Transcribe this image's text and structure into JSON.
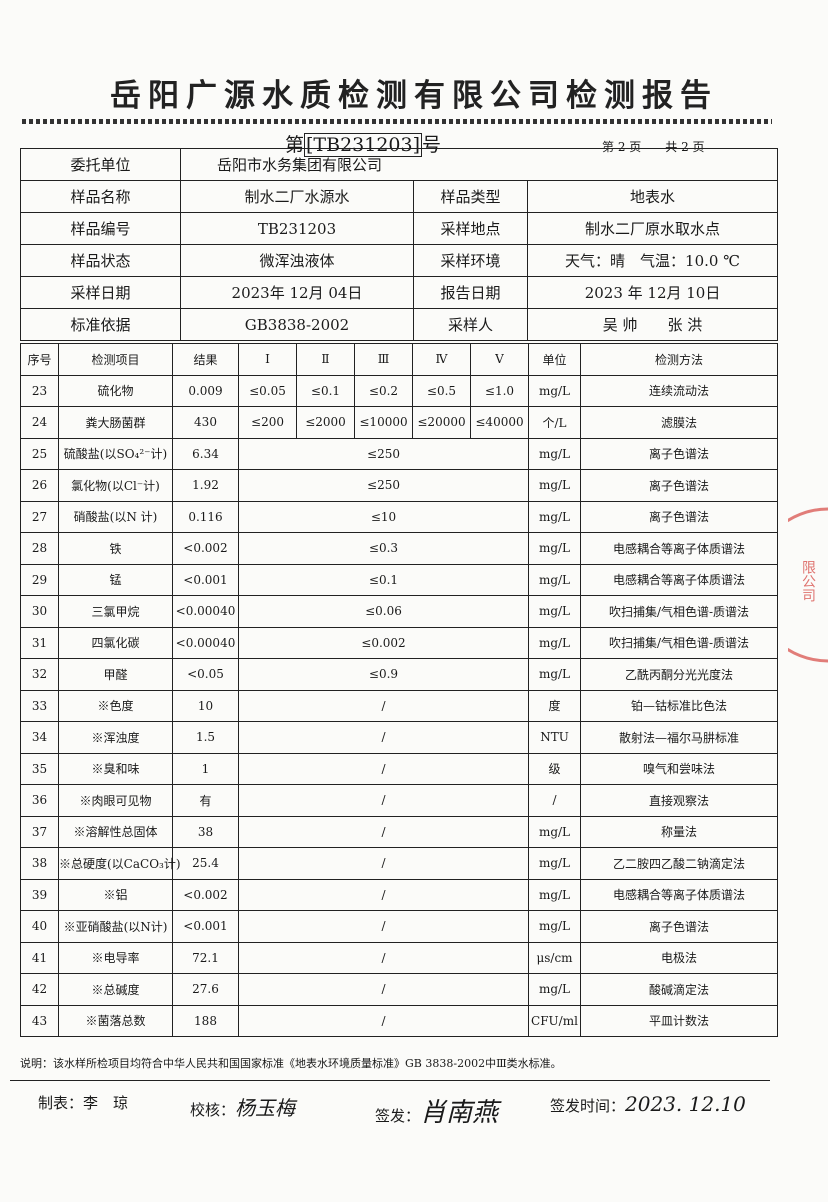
{
  "title": "岳阳广源水质检测有限公司检测报告",
  "report_no_prefix": "第",
  "report_no": "[TB231203]",
  "report_no_suffix": "号",
  "page_info": "第 2 页　　共 2 页",
  "info": {
    "client_label": "委托单位",
    "client": "岳阳市水务集团有限公司",
    "sample_name_label": "样品名称",
    "sample_name": "制水二厂水源水",
    "sample_type_label": "样品类型",
    "sample_type": "地表水",
    "sample_no_label": "样品编号",
    "sample_no": "TB231203",
    "location_label": "采样地点",
    "location": "制水二厂原水取水点",
    "state_label": "样品状态",
    "state": "微浑浊液体",
    "env_label": "采样环境",
    "env": "天气：晴　气温：10.0 ℃",
    "sample_date_label": "采样日期",
    "sample_date": "2023年 12月 04日",
    "report_date_label": "报告日期",
    "report_date": "2023 年 12月 10日",
    "standard_label": "标准依据",
    "standard": "GB3838-2002",
    "sampler_label": "采样人",
    "sampler": "吴 帅　　张 洪"
  },
  "columns": [
    "序号",
    "检测项目",
    "结果",
    "Ⅰ",
    "Ⅱ",
    "Ⅲ",
    "Ⅳ",
    "Ⅴ",
    "单位",
    "检测方法"
  ],
  "rows": [
    {
      "no": "23",
      "item": "硫化物",
      "result": "0.009",
      "limits": [
        "≤0.05",
        "≤0.1",
        "≤0.2",
        "≤0.5",
        "≤1.0"
      ],
      "unit": "mg/L",
      "method": "连续流动法"
    },
    {
      "no": "24",
      "item": "粪大肠菌群",
      "result": "430",
      "limits": [
        "≤200",
        "≤2000",
        "≤10000",
        "≤20000",
        "≤40000"
      ],
      "unit": "个/L",
      "method": "滤膜法"
    },
    {
      "no": "25",
      "item": "硫酸盐(以SO₄²⁻计)",
      "result": "6.34",
      "limit": "≤250",
      "unit": "mg/L",
      "method": "离子色谱法"
    },
    {
      "no": "26",
      "item": "氯化物(以Cl⁻计)",
      "result": "1.92",
      "limit": "≤250",
      "unit": "mg/L",
      "method": "离子色谱法"
    },
    {
      "no": "27",
      "item": "硝酸盐(以N 计)",
      "result": "0.116",
      "limit": "≤10",
      "unit": "mg/L",
      "method": "离子色谱法"
    },
    {
      "no": "28",
      "item": "铁",
      "result": "<0.002",
      "limit": "≤0.3",
      "unit": "mg/L",
      "method": "电感耦合等离子体质谱法"
    },
    {
      "no": "29",
      "item": "锰",
      "result": "<0.001",
      "limit": "≤0.1",
      "unit": "mg/L",
      "method": "电感耦合等离子体质谱法"
    },
    {
      "no": "30",
      "item": "三氯甲烷",
      "result": "<0.00040",
      "limit": "≤0.06",
      "unit": "mg/L",
      "method": "吹扫捕集/气相色谱-质谱法"
    },
    {
      "no": "31",
      "item": "四氯化碳",
      "result": "<0.00040",
      "limit": "≤0.002",
      "unit": "mg/L",
      "method": "吹扫捕集/气相色谱-质谱法"
    },
    {
      "no": "32",
      "item": "甲醛",
      "result": "<0.05",
      "limit": "≤0.9",
      "unit": "mg/L",
      "method": "乙酰丙酮分光光度法"
    },
    {
      "no": "33",
      "item": "※色度",
      "result": "10",
      "limit": "/",
      "unit": "度",
      "method": "铂—钴标准比色法"
    },
    {
      "no": "34",
      "item": "※浑浊度",
      "result": "1.5",
      "limit": "/",
      "unit": "NTU",
      "method": "散射法—福尔马肼标准"
    },
    {
      "no": "35",
      "item": "※臭和味",
      "result": "1",
      "limit": "/",
      "unit": "级",
      "method": "嗅气和尝味法"
    },
    {
      "no": "36",
      "item": "※肉眼可见物",
      "result": "有",
      "limit": "/",
      "unit": "/",
      "method": "直接观察法"
    },
    {
      "no": "37",
      "item": "※溶解性总固体",
      "result": "38",
      "limit": "/",
      "unit": "mg/L",
      "method": "称量法"
    },
    {
      "no": "38",
      "item": "※总硬度(以CaCO₃计)",
      "result": "25.4",
      "limit": "/",
      "unit": "mg/L",
      "method": "乙二胺四乙酸二钠滴定法"
    },
    {
      "no": "39",
      "item": "※铝",
      "result": "<0.002",
      "limit": "/",
      "unit": "mg/L",
      "method": "电感耦合等离子体质谱法"
    },
    {
      "no": "40",
      "item": "※亚硝酸盐(以N计)",
      "result": "<0.001",
      "limit": "/",
      "unit": "mg/L",
      "method": "离子色谱法"
    },
    {
      "no": "41",
      "item": "※电导率",
      "result": "72.1",
      "limit": "/",
      "unit": "μs/cm",
      "method": "电极法"
    },
    {
      "no": "42",
      "item": "※总碱度",
      "result": "27.6",
      "limit": "/",
      "unit": "mg/L",
      "method": "酸碱滴定法"
    },
    {
      "no": "43",
      "item": "※菌落总数",
      "result": "188",
      "limit": "/",
      "unit": "CFU/ml",
      "method": "平皿计数法"
    }
  ],
  "note": "说明：该水样所检项目均符合中华人民共和国国家标准《地表水环境质量标准》GB 3838-2002中Ⅲ类水标准。",
  "footer": {
    "prepared_label": "制表：",
    "prepared": "李　琼",
    "checked_label": "校核：",
    "checked": "杨玉梅",
    "issued_label": "签发：",
    "issued": "肖南燕",
    "issue_time_label": "签发时间：",
    "issue_time": "2023. 12.10"
  },
  "stamp_text": "限公司",
  "stamp_color": "#d9534f"
}
